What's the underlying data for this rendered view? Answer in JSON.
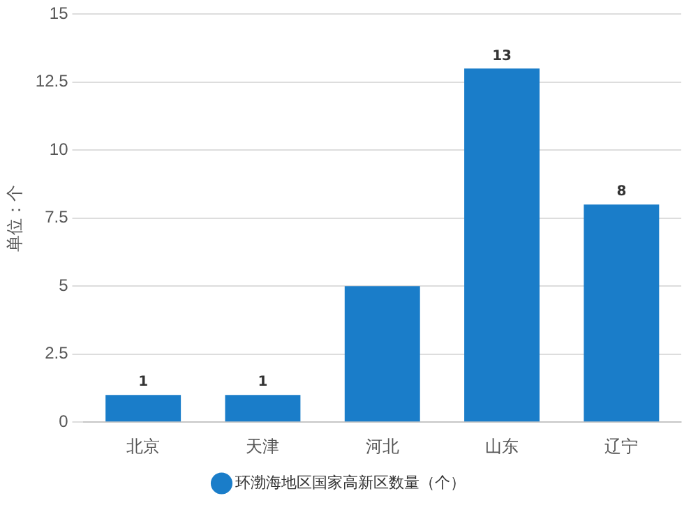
{
  "chart_data": {
    "type": "bar",
    "ylabel": "单位：个",
    "categories": [
      "北京",
      "天津",
      "河北",
      "山东",
      "辽宁"
    ],
    "series": [
      {
        "name": "环渤海地区国家高新区数量（个）",
        "color": "#1a7dc9",
        "values": [
          1,
          1,
          5,
          13,
          8
        ],
        "value_labels": [
          "1",
          "1",
          null,
          "13",
          "8"
        ]
      }
    ],
    "ylim": [
      0,
      15
    ],
    "yticks": [
      0,
      2.5,
      5,
      7.5,
      10,
      12.5,
      15
    ],
    "grid": "y",
    "legend": "bottom"
  }
}
